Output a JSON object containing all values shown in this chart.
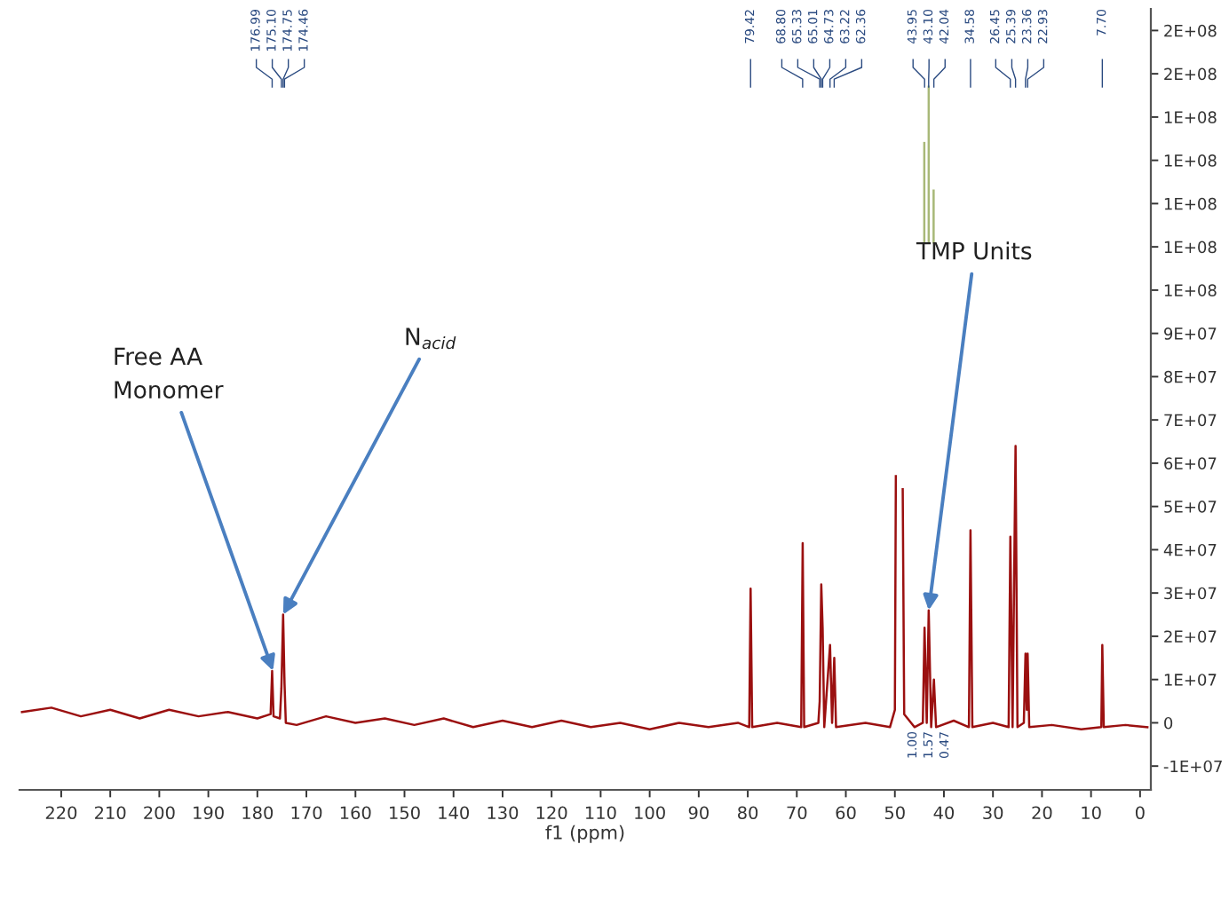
{
  "chart_data": {
    "type": "line",
    "xlabel": "f1 (ppm)",
    "xlim": [
      228.5,
      -2.2
    ],
    "xticks": [
      220,
      210,
      200,
      190,
      180,
      170,
      160,
      150,
      140,
      130,
      120,
      110,
      100,
      90,
      80,
      70,
      60,
      50,
      40,
      30,
      20,
      10,
      0
    ],
    "ylim": [
      -15500000,
      165000000
    ],
    "yticks": [
      {
        "value": -10000000,
        "label": "-1E+07"
      },
      {
        "value": 0,
        "label": "0"
      },
      {
        "value": 10000000,
        "label": "1E+07"
      },
      {
        "value": 20000000,
        "label": "2E+07"
      },
      {
        "value": 30000000,
        "label": "3E+07"
      },
      {
        "value": 40000000,
        "label": "4E+07"
      },
      {
        "value": 50000000,
        "label": "5E+07"
      },
      {
        "value": 60000000,
        "label": "6E+07"
      },
      {
        "value": 70000000,
        "label": "7E+07"
      },
      {
        "value": 80000000,
        "label": "8E+07"
      },
      {
        "value": 90000000,
        "label": "9E+07"
      },
      {
        "value": 100000000,
        "label": "1E+08"
      },
      {
        "value": 110000000,
        "label": "1E+08"
      },
      {
        "value": 120000000,
        "label": "1E+08"
      },
      {
        "value": 130000000,
        "label": "1E+08"
      },
      {
        "value": 140000000,
        "label": "1E+08"
      },
      {
        "value": 150000000,
        "label": "2E+08"
      },
      {
        "value": 160000000,
        "label": "2E+08"
      }
    ],
    "grid": false,
    "legend": false,
    "series": [
      {
        "color": "#9b1010",
        "x": [
          228,
          222,
          216,
          210,
          204,
          198,
          192,
          186,
          180,
          177.3,
          176.99,
          176.7,
          175.4,
          175.1,
          174.75,
          174.46,
          174.2,
          172,
          166,
          160,
          154,
          148,
          142,
          136,
          130,
          124,
          118,
          112,
          106,
          100,
          94,
          88,
          82,
          79.7,
          79.42,
          79.1,
          74,
          69.1,
          68.8,
          68.5,
          65.6,
          65.33,
          65.01,
          64.73,
          64.4,
          63.22,
          62.8,
          62.36,
          62.0,
          56,
          51,
          50.0,
          49.8,
          49.5,
          48.7,
          48.4,
          48.1,
          46,
          44.3,
          43.95,
          43.5,
          43.1,
          42.6,
          42.04,
          41.6,
          38,
          34.9,
          34.58,
          34.2,
          30,
          26.8,
          26.45,
          26.0,
          25.39,
          25.0,
          23.7,
          23.36,
          23.1,
          22.93,
          22.6,
          18,
          12,
          7.9,
          7.7,
          7.4,
          3,
          -1.5
        ],
        "values": [
          2500000,
          3500000,
          1500000,
          3000000,
          1000000,
          3000000,
          1500000,
          2500000,
          1000000,
          2000000,
          12000000,
          1500000,
          1000000,
          8000000,
          25000000,
          9000000,
          0,
          -500000,
          1500000,
          0,
          1000000,
          -500000,
          1000000,
          -1000000,
          500000,
          -1000000,
          500000,
          -1000000,
          0,
          -1500000,
          0,
          -1000000,
          0,
          -1000000,
          31000000,
          -1000000,
          0,
          -1000000,
          41500000,
          -1000000,
          0,
          5000000,
          32000000,
          22000000,
          -1000000,
          18000000,
          0,
          15000000,
          -1000000,
          0,
          -1000000,
          3000000,
          57000000,
          null,
          null,
          54000000,
          2000000,
          -1000000,
          0,
          22000000,
          0,
          26000000,
          -1000000,
          10000000,
          -1000000,
          500000,
          -1000000,
          44500000,
          -1000000,
          0,
          -1000000,
          43000000,
          -1000000,
          64000000,
          -1000000,
          0,
          16000000,
          3000000,
          16000000,
          -1000000,
          -500000,
          -1500000,
          -1000000,
          18000000,
          -1000000,
          -500000,
          -1000000
        ]
      },
      {
        "color": "#a8b878",
        "x": [
          44.0,
          44.0
        ],
        "values": [
          111000000,
          134000000
        ]
      },
      {
        "color": "#a8b878",
        "x": [
          43.1,
          43.1
        ],
        "values": [
          111000000,
          147000000
        ]
      },
      {
        "color": "#a8b878",
        "x": [
          42.1,
          42.1
        ],
        "values": [
          111000000,
          123000000
        ]
      }
    ],
    "annotations": [
      {
        "text": "Free AA\nMonomer",
        "x": 176.8,
        "y": 12000000
      },
      {
        "text": "N$_{acid}$",
        "x": 174.75,
        "y": 25000000
      },
      {
        "text": "TMP Units",
        "x": 43.1,
        "y": 26000000
      },
      "1.00",
      "1.57",
      "0.47",
      "176.99",
      "175.10",
      "174.75",
      "174.46",
      "79.42",
      "68.80",
      "65.33",
      "65.01",
      "64.73",
      "63.22",
      "62.36",
      "43.95",
      "43.10",
      "42.04",
      "34.58",
      "26.45",
      "25.39",
      "23.36",
      "22.93",
      "7.70"
    ]
  }
}
